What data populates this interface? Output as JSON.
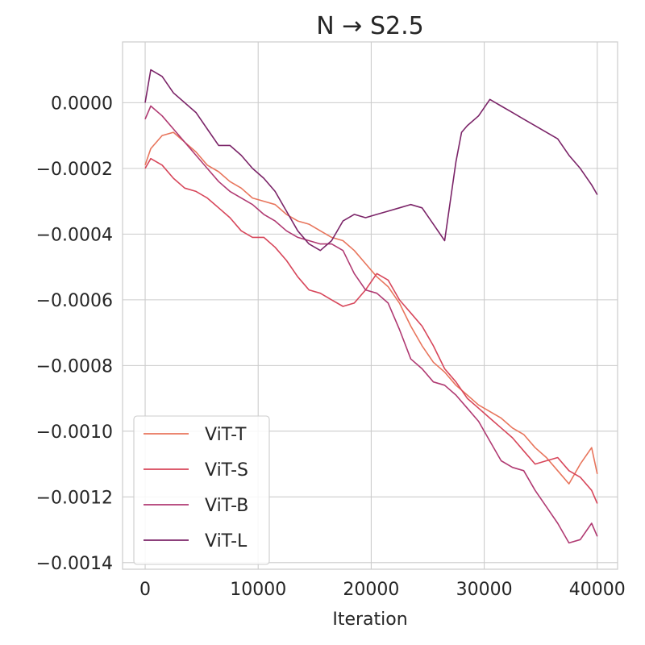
{
  "chart_data": {
    "type": "line",
    "title": "N → S2.5",
    "xlabel": "Iteration",
    "ylabel": "",
    "xlim": [
      -2000,
      41800
    ],
    "ylim": [
      -0.00142,
      0.000185
    ],
    "grid": true,
    "legend_position": "lower-left",
    "x_ticks": [
      0,
      10000,
      20000,
      30000,
      40000
    ],
    "x_tick_labels": [
      "0",
      "10000",
      "20000",
      "30000",
      "40000"
    ],
    "y_ticks": [
      0.0,
      -0.0002,
      -0.0004,
      -0.0006,
      -0.0008,
      -0.001,
      -0.0012,
      -0.0014
    ],
    "y_tick_labels": [
      "0.0000",
      "−0.0002",
      "−0.0004",
      "−0.0006",
      "−0.0008",
      "−0.0010",
      "−0.0012",
      "−0.0014"
    ],
    "series": [
      {
        "name": "ViT-T",
        "color": "#e8755c",
        "x": [
          0,
          500,
          1500,
          2500,
          3500,
          4500,
          5500,
          6500,
          7500,
          8500,
          9500,
          10500,
          11500,
          12500,
          13500,
          14500,
          15500,
          16500,
          17500,
          18500,
          19500,
          20500,
          21500,
          22500,
          23500,
          24500,
          25500,
          26500,
          27500,
          28500,
          29500,
          30500,
          31500,
          32500,
          33500,
          34500,
          35500,
          36500,
          37500,
          38500,
          39500,
          40000
        ],
        "y": [
          -0.00019,
          -0.00014,
          -0.0001,
          -9e-05,
          -0.00012,
          -0.00015,
          -0.00019,
          -0.00021,
          -0.00024,
          -0.00026,
          -0.00029,
          -0.0003,
          -0.00031,
          -0.00034,
          -0.00036,
          -0.00037,
          -0.00039,
          -0.00041,
          -0.00042,
          -0.00045,
          -0.00049,
          -0.00053,
          -0.00056,
          -0.00061,
          -0.00068,
          -0.00074,
          -0.00079,
          -0.00082,
          -0.00086,
          -0.00089,
          -0.00092,
          -0.00094,
          -0.00096,
          -0.00099,
          -0.00101,
          -0.00105,
          -0.00108,
          -0.00112,
          -0.00116,
          -0.0011,
          -0.00105,
          -0.00113
        ]
      },
      {
        "name": "ViT-S",
        "color": "#d7465a",
        "x": [
          0,
          500,
          1500,
          2500,
          3500,
          4500,
          5500,
          6500,
          7500,
          8500,
          9500,
          10500,
          11500,
          12500,
          13500,
          14500,
          15500,
          16500,
          17500,
          18500,
          19500,
          20500,
          21500,
          22500,
          23500,
          24500,
          25500,
          26500,
          27500,
          28500,
          29500,
          30500,
          31500,
          32500,
          33500,
          34500,
          35500,
          36500,
          37500,
          38500,
          39500,
          40000
        ],
        "y": [
          -0.0002,
          -0.00017,
          -0.00019,
          -0.00023,
          -0.00026,
          -0.00027,
          -0.00029,
          -0.00032,
          -0.00035,
          -0.00039,
          -0.00041,
          -0.00041,
          -0.00044,
          -0.00048,
          -0.00053,
          -0.00057,
          -0.00058,
          -0.0006,
          -0.00062,
          -0.00061,
          -0.00057,
          -0.00052,
          -0.00054,
          -0.0006,
          -0.00064,
          -0.00068,
          -0.00074,
          -0.00081,
          -0.00085,
          -0.0009,
          -0.00093,
          -0.00096,
          -0.00099,
          -0.00102,
          -0.00106,
          -0.0011,
          -0.00109,
          -0.00108,
          -0.00112,
          -0.00114,
          -0.00118,
          -0.00122
        ]
      },
      {
        "name": "ViT-B",
        "color": "#b03a72",
        "x": [
          0,
          500,
          1500,
          2500,
          3500,
          4500,
          5500,
          6500,
          7500,
          8500,
          9500,
          10500,
          11500,
          12500,
          13500,
          14500,
          15500,
          16500,
          17500,
          18500,
          19500,
          20500,
          21500,
          22500,
          23500,
          24500,
          25500,
          26500,
          27500,
          28500,
          29500,
          30500,
          31500,
          32500,
          33500,
          34500,
          35500,
          36500,
          37500,
          38500,
          39500,
          40000
        ],
        "y": [
          -5e-05,
          -1e-05,
          -4e-05,
          -8e-05,
          -0.00012,
          -0.00016,
          -0.0002,
          -0.00024,
          -0.00027,
          -0.00029,
          -0.00031,
          -0.00034,
          -0.00036,
          -0.00039,
          -0.00041,
          -0.00042,
          -0.00043,
          -0.00043,
          -0.00045,
          -0.00052,
          -0.00057,
          -0.00058,
          -0.00061,
          -0.00069,
          -0.00078,
          -0.00081,
          -0.00085,
          -0.00086,
          -0.00089,
          -0.00093,
          -0.00097,
          -0.00103,
          -0.00109,
          -0.00111,
          -0.00112,
          -0.00118,
          -0.00123,
          -0.00128,
          -0.00134,
          -0.00133,
          -0.00128,
          -0.00132
        ]
      },
      {
        "name": "ViT-L",
        "color": "#7b2468",
        "x": [
          0,
          500,
          1500,
          2500,
          3500,
          4500,
          5500,
          6500,
          7500,
          8500,
          9500,
          10500,
          11500,
          12500,
          13500,
          14500,
          15500,
          16500,
          17500,
          18500,
          19500,
          20500,
          21500,
          22500,
          23500,
          24500,
          25500,
          26500,
          27500,
          28000,
          28500,
          29500,
          30500,
          31500,
          32500,
          33500,
          34500,
          35500,
          36500,
          37500,
          38500,
          39500,
          40000
        ],
        "y": [
          0.0,
          0.0001,
          8e-05,
          3e-05,
          0.0,
          -3e-05,
          -8e-05,
          -0.00013,
          -0.00013,
          -0.00016,
          -0.0002,
          -0.00023,
          -0.00027,
          -0.00033,
          -0.00039,
          -0.00043,
          -0.00045,
          -0.00042,
          -0.00036,
          -0.00034,
          -0.00035,
          -0.00034,
          -0.00033,
          -0.00032,
          -0.00031,
          -0.00032,
          -0.00037,
          -0.00042,
          -0.00018,
          -9e-05,
          -7e-05,
          -4e-05,
          1e-05,
          -1e-05,
          -3e-05,
          -5e-05,
          -7e-05,
          -9e-05,
          -0.00011,
          -0.00016,
          -0.0002,
          -0.00025,
          -0.00028
        ]
      }
    ]
  }
}
